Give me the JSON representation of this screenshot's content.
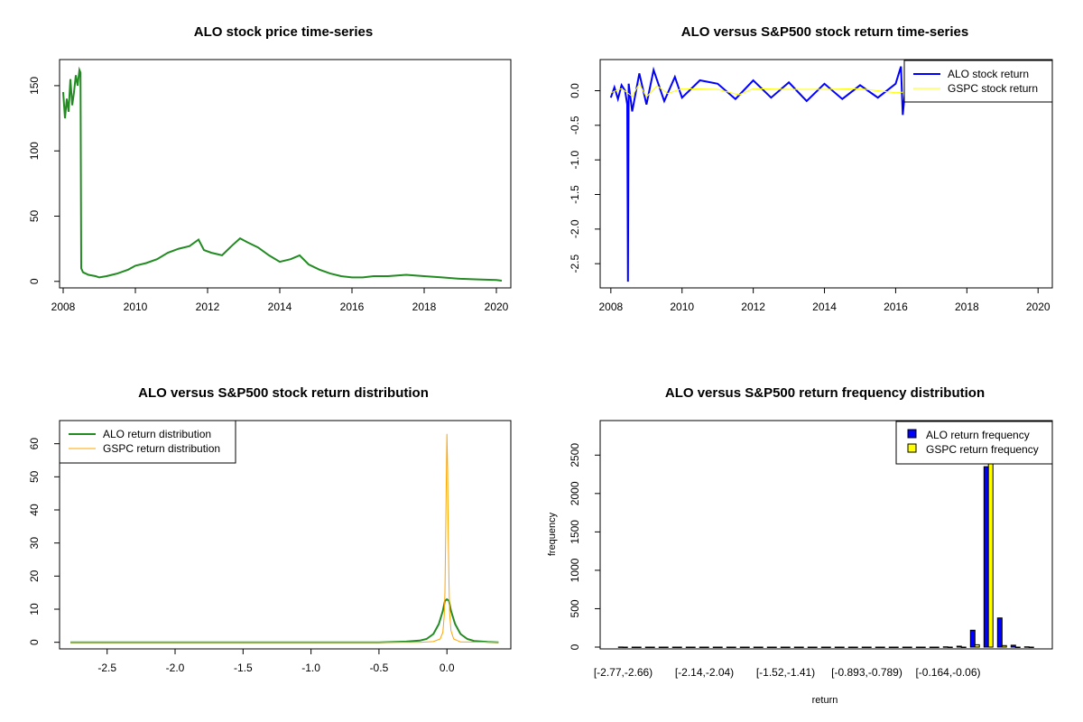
{
  "chart_data": [
    {
      "type": "line",
      "title": "ALO stock price time-series",
      "xlabel": "",
      "ylabel": "",
      "xlim": [
        2007.9,
        2020.4
      ],
      "ylim": [
        -5,
        170
      ],
      "x_ticks": [
        2008,
        2010,
        2012,
        2014,
        2016,
        2018,
        2020
      ],
      "x_tick_labels": [
        "2008",
        "2010",
        "2012",
        "2014",
        "2016",
        "2018",
        "2020"
      ],
      "y_ticks": [
        0,
        50,
        100,
        150
      ],
      "y_tick_labels": [
        "0",
        "50",
        "100",
        "150"
      ],
      "series": [
        {
          "name": "ALO price",
          "color": "#228B22",
          "x": [
            2008.0,
            2008.05,
            2008.1,
            2008.15,
            2008.2,
            2008.25,
            2008.3,
            2008.35,
            2008.4,
            2008.45,
            2008.48,
            2008.5,
            2008.55,
            2008.7,
            2008.9,
            2009.0,
            2009.2,
            2009.5,
            2009.8,
            2010.0,
            2010.3,
            2010.6,
            2010.9,
            2011.2,
            2011.5,
            2011.75,
            2011.9,
            2012.1,
            2012.4,
            2012.7,
            2012.9,
            2013.1,
            2013.4,
            2013.7,
            2014.0,
            2014.3,
            2014.55,
            2014.8,
            2015.1,
            2015.4,
            2015.7,
            2016.0,
            2016.3,
            2016.6,
            2017.0,
            2017.5,
            2018.0,
            2018.5,
            2019.0,
            2019.5,
            2020.0,
            2020.15
          ],
          "values": [
            145,
            125,
            140,
            130,
            155,
            135,
            145,
            158,
            150,
            162,
            160,
            10,
            7,
            5,
            4,
            3,
            4,
            6,
            9,
            12,
            14,
            17,
            22,
            25,
            27,
            32,
            24,
            22,
            20,
            28,
            33,
            30,
            26,
            20,
            15,
            17,
            20,
            13,
            9,
            6,
            4,
            3,
            3,
            4,
            4,
            5,
            4,
            3,
            2,
            1.5,
            1,
            0.5
          ]
        }
      ]
    },
    {
      "type": "line",
      "title": "ALO versus S&P500 stock return time-series",
      "xlabel": "",
      "ylabel": "",
      "xlim": [
        2007.7,
        2020.4
      ],
      "ylim": [
        -2.85,
        0.45
      ],
      "x_ticks": [
        2008,
        2010,
        2012,
        2014,
        2016,
        2018,
        2020
      ],
      "x_tick_labels": [
        "2008",
        "2010",
        "2012",
        "2014",
        "2016",
        "2018",
        "2020"
      ],
      "y_ticks": [
        0,
        -0.5,
        -1,
        -1.5,
        -2,
        -2.5
      ],
      "y_tick_labels": [
        "0.0",
        "-0.5",
        "-1.0",
        "-1.5",
        "-2.0",
        "-2.5"
      ],
      "legend": {
        "position": "top-right",
        "entries": [
          {
            "label": "ALO stock return",
            "color": "#0000FF",
            "width": 2
          },
          {
            "label": "GSPC stock return",
            "color": "#FFFF00",
            "width": 1
          }
        ]
      },
      "series": [
        {
          "name": "ALO stock return",
          "color": "#0000FF",
          "x": [
            2008.0,
            2008.1,
            2008.2,
            2008.3,
            2008.4,
            2008.46,
            2008.48,
            2008.5,
            2008.6,
            2008.8,
            2009.0,
            2009.2,
            2009.5,
            2009.8,
            2010.0,
            2010.5,
            2011.0,
            2011.5,
            2012.0,
            2012.5,
            2013.0,
            2013.5,
            2014.0,
            2014.5,
            2015.0,
            2015.5,
            2016.0,
            2016.15,
            2016.2,
            2016.3,
            2016.5,
            2017.0,
            2018.0,
            2019.0,
            2020.0,
            2020.15
          ],
          "values": [
            -0.1,
            0.05,
            -0.12,
            0.08,
            0.0,
            -0.2,
            -2.76,
            0.1,
            -0.3,
            0.25,
            -0.2,
            0.3,
            -0.15,
            0.2,
            -0.1,
            0.15,
            0.1,
            -0.12,
            0.15,
            -0.1,
            0.12,
            -0.15,
            0.1,
            -0.12,
            0.08,
            -0.1,
            0.1,
            0.35,
            -0.35,
            0.2,
            -0.1,
            -0.08,
            -0.15,
            -0.12,
            -0.1,
            -0.05
          ]
        },
        {
          "name": "GSPC stock return",
          "color": "#FFFF00",
          "x": [
            2008.0,
            2008.3,
            2008.6,
            2008.8,
            2009.0,
            2009.3,
            2009.6,
            2010.0,
            2011.0,
            2011.6,
            2012.0,
            2013.0,
            2014.0,
            2015.0,
            2016.0,
            2017.0,
            2018.0,
            2019.0,
            2020.0,
            2020.15
          ],
          "values": [
            -0.03,
            0.03,
            -0.08,
            0.1,
            -0.09,
            0.07,
            -0.04,
            0.03,
            0.02,
            -0.06,
            0.03,
            0.02,
            0.02,
            0.03,
            -0.03,
            0.01,
            -0.03,
            0.02,
            -0.08,
            0.05
          ]
        }
      ]
    },
    {
      "type": "line",
      "title": "ALO versus S&P500 stock return distribution",
      "xlabel": "",
      "ylabel": "",
      "xlim": [
        -2.85,
        0.47
      ],
      "ylim": [
        -2,
        67
      ],
      "x_ticks": [
        -2.5,
        -2.0,
        -1.5,
        -1.0,
        -0.5,
        0.0
      ],
      "x_tick_labels": [
        "-2.5",
        "-2.0",
        "-1.5",
        "-1.0",
        "-0.5",
        "0.0"
      ],
      "y_ticks": [
        0,
        10,
        20,
        30,
        40,
        50,
        60
      ],
      "y_tick_labels": [
        "0",
        "10",
        "20",
        "30",
        "40",
        "50",
        "60"
      ],
      "legend": {
        "position": "top-left",
        "entries": [
          {
            "label": "ALO return distribution",
            "color": "#228B22",
            "width": 2
          },
          {
            "label": "GSPC return distribution",
            "color": "#FFA500",
            "width": 1
          }
        ]
      },
      "series": [
        {
          "name": "ALO return distribution",
          "color": "#228B22",
          "x": [
            -2.77,
            -1.0,
            -0.5,
            -0.3,
            -0.2,
            -0.15,
            -0.1,
            -0.06,
            -0.03,
            -0.015,
            0.0,
            0.015,
            0.03,
            0.06,
            0.1,
            0.15,
            0.2,
            0.3,
            0.38
          ],
          "values": [
            0,
            0,
            0,
            0.2,
            0.5,
            1.0,
            2.5,
            5.5,
            9.5,
            12.5,
            13,
            12.5,
            9.5,
            5.5,
            2.5,
            1.0,
            0.4,
            0.1,
            0
          ]
        },
        {
          "name": "GSPC return distribution",
          "color": "#FFA500",
          "x": [
            -2.77,
            -0.2,
            -0.1,
            -0.05,
            -0.03,
            -0.02,
            -0.015,
            -0.01,
            -0.005,
            0.0,
            0.005,
            0.01,
            0.015,
            0.02,
            0.03,
            0.05,
            0.1,
            0.38
          ],
          "values": [
            0,
            0,
            0.2,
            1.0,
            3.0,
            8.0,
            15,
            30,
            48,
            63,
            52,
            32,
            18,
            9,
            3.5,
            1.0,
            0.1,
            0
          ]
        }
      ]
    },
    {
      "type": "bar",
      "title": "ALO versus S&P500 return frequency distribution",
      "xlabel": "return",
      "ylabel": "frequency",
      "ylim": [
        0,
        2950
      ],
      "y_ticks": [
        0,
        500,
        1000,
        1500,
        2000,
        2500
      ],
      "y_tick_labels": [
        "0",
        "500",
        "1000",
        "1500",
        "2000",
        "2500"
      ],
      "categories": [
        "[-2.77,-2.66)",
        "c2",
        "c3",
        "c4",
        "c5",
        "c6",
        "[-2.14,-2.04)",
        "c8",
        "c9",
        "c10",
        "c11",
        "c12",
        "[-1.52,-1.41)",
        "c14",
        "c15",
        "c16",
        "c17",
        "c18",
        "[-0.893,-0.789)",
        "c20",
        "c21",
        "c22",
        "c23",
        "c24",
        "[-0.164,-0.06)",
        "c26",
        "c27",
        "c28",
        "c29",
        "c30",
        "c31"
      ],
      "visible_category_labels": [
        "[-2.77,-2.66)",
        "[-2.14,-2.04)",
        "[-1.52,-1.41)",
        "[-0.893,-0.789)",
        "[-0.164,-0.06)"
      ],
      "legend": {
        "position": "top-right",
        "entries": [
          {
            "label": "ALO return frequency",
            "color": "#0000FF"
          },
          {
            "label": "GSPC return frequency",
            "color": "#FFFF00"
          }
        ]
      },
      "series": [
        {
          "name": "ALO return frequency",
          "color": "#0000FF",
          "values": [
            1,
            0,
            0,
            0,
            0,
            0,
            0,
            0,
            0,
            0,
            0,
            0,
            0,
            0,
            0,
            0,
            0,
            0,
            0,
            0,
            0,
            0,
            0,
            0,
            4,
            12,
            220,
            2350,
            380,
            25,
            3
          ]
        },
        {
          "name": "GSPC return frequency",
          "color": "#FFFF00",
          "values": [
            0,
            0,
            0,
            0,
            0,
            0,
            0,
            0,
            0,
            0,
            0,
            0,
            0,
            0,
            0,
            0,
            0,
            0,
            0,
            0,
            0,
            0,
            0,
            0,
            0,
            0,
            30,
            2950,
            20,
            0,
            0
          ]
        }
      ]
    }
  ]
}
